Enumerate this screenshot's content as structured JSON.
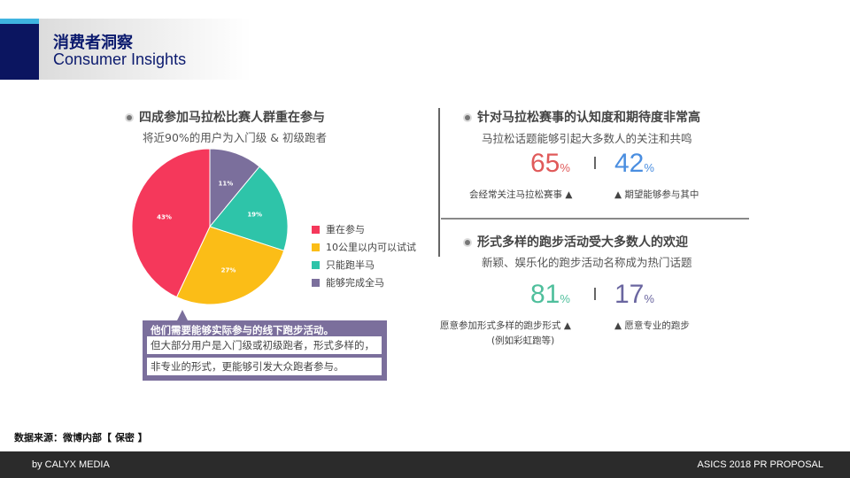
{
  "header": {
    "title_cn": "消费者洞察",
    "title_en": "Consumer Insights"
  },
  "left": {
    "heading": "四成参加马拉松比赛人群重在参与",
    "subheading": "将近90%的用户为入门级 & 初级跑者",
    "callout": [
      "他们需要能够实际参与的线下跑步活动。",
      "但大部分用户是入门级或初级跑者，形式多样的，",
      "非专业的形式，更能够引发大众跑者参与。"
    ]
  },
  "chart_data": {
    "type": "pie",
    "start": "top",
    "direction": "clockwise",
    "slices": [
      {
        "name": "能够完成全马",
        "value": 11,
        "label": "11%",
        "color": "#7b6f9c"
      },
      {
        "name": "只能跑半马",
        "value": 19,
        "label": "19%",
        "color": "#2ec4a9"
      },
      {
        "name": "10公里以内可以试试",
        "value": 27,
        "label": "27%",
        "color": "#fbbd17"
      },
      {
        "name": "重在参与",
        "value": 43,
        "label": "43%",
        "color": "#f5385b"
      }
    ],
    "legend": [
      "重在参与",
      "10公里以内可以试试",
      "只能跑半马",
      "能够完成全马"
    ],
    "legend_placement": "right"
  },
  "right": {
    "s1": {
      "heading": "针对马拉松赛事的认知度和期待度非常高",
      "subheading": "马拉松话题能够引起大多数人的关注和共鸣",
      "a": {
        "value": "65",
        "unit": "%",
        "label": "会经常关注马拉松赛事 ▲",
        "color": "#e05a5a"
      },
      "b": {
        "value": "42",
        "unit": "%",
        "label": "▲ 期望能够参与其中",
        "color": "#4a8ee0"
      }
    },
    "s2": {
      "heading": "形式多样的跑步活动受大多数人的欢迎",
      "subheading": "新颖、娱乐化的跑步活动名称成为热门话题",
      "a": {
        "value": "81",
        "unit": "%",
        "label": "愿意参加形式多样的跑步形式 ▲",
        "label2": "(例如彩虹跑等)",
        "color": "#4fbf9c"
      },
      "b": {
        "value": "17",
        "unit": "%",
        "label": "▲ 愿意专业的跑步",
        "color": "#6a66a0"
      }
    }
  },
  "source": "数据来源：微博内部【 保密 】",
  "footer": {
    "left": "by CALYX MEDIA",
    "right": "ASICS 2018 PR PROPOSAL"
  }
}
